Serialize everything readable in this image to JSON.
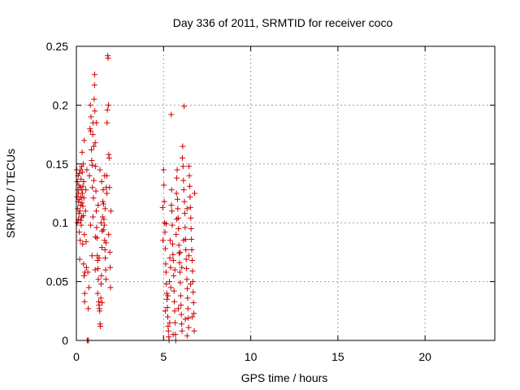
{
  "chart_data": {
    "type": "scatter",
    "title": "Day 336 of 2011, SRMTID for receiver coco",
    "xlabel": "GPS time / hours",
    "ylabel": "SRMTID / TECUs",
    "xlim": [
      0,
      24
    ],
    "ylim": [
      0,
      0.25
    ],
    "xticks": [
      0,
      5,
      10,
      15,
      20
    ],
    "xtick_labels": [
      "0",
      "5",
      "10",
      "15",
      "20"
    ],
    "yticks": [
      0,
      0.05,
      0.1,
      0.15,
      0.2,
      0.25
    ],
    "ytick_labels": [
      "0",
      "0.05",
      "0.1",
      "0.15",
      "0.2",
      "0.25"
    ],
    "grid": true,
    "legend": "none",
    "marker": "plus",
    "color": "#cc0000",
    "series": [
      {
        "points": [
          [
            0.02,
            0.145
          ],
          [
            0.04,
            0.122
          ],
          [
            0.05,
            0.1
          ],
          [
            0.06,
            0.135
          ],
          [
            0.08,
            0.112
          ],
          [
            0.09,
            0.128
          ],
          [
            0.1,
            0.14
          ],
          [
            0.11,
            0.118
          ],
          [
            0.12,
            0.103
          ],
          [
            0.13,
            0.125
          ],
          [
            0.14,
            0.132
          ],
          [
            0.15,
            0.108
          ],
          [
            0.16,
            0.142
          ],
          [
            0.17,
            0.092
          ],
          [
            0.18,
            0.12
          ],
          [
            0.19,
            0.069
          ],
          [
            0.2,
            0.11
          ],
          [
            0.21,
            0.13
          ],
          [
            0.22,
            0.085
          ],
          [
            0.23,
            0.145
          ],
          [
            0.24,
            0.115
          ],
          [
            0.25,
            0.102
          ],
          [
            0.26,
            0.122
          ],
          [
            0.27,
            0.137
          ],
          [
            0.28,
            0.098
          ],
          [
            0.29,
            0.128
          ],
          [
            0.3,
            0.148
          ],
          [
            0.31,
            0.105
          ],
          [
            0.32,
            0.117
          ],
          [
            0.33,
            0.16
          ],
          [
            0.34,
            0.143
          ],
          [
            0.35,
            0.125
          ],
          [
            0.36,
            0.082
          ],
          [
            0.37,
            0.114
          ],
          [
            0.38,
            0.131
          ],
          [
            0.39,
            0.15
          ],
          [
            0.4,
            0.106
          ],
          [
            0.41,
            0.065
          ],
          [
            0.42,
            0.135
          ],
          [
            0.43,
            0.121
          ],
          [
            0.44,
            0.055
          ],
          [
            0.45,
            0.17
          ],
          [
            0.46,
            0.09
          ],
          [
            0.47,
            0.033
          ],
          [
            0.48,
            0.04
          ],
          [
            0.5,
            0.058
          ],
          [
            0.52,
            0.11
          ],
          [
            0.54,
            0.128
          ],
          [
            0.56,
            0.084
          ],
          [
            0.58,
            0.062
          ],
          [
            0.6,
            0.145
          ],
          [
            0.62,
            0.0
          ],
          [
            0.64,
            0.0
          ],
          [
            0.66,
            0.058
          ],
          [
            0.68,
            0.027
          ],
          [
            0.7,
            0.0
          ],
          [
            0.72,
            0.045
          ],
          [
            0.75,
            0.14
          ],
          [
            0.78,
            0.18
          ],
          [
            0.8,
            0.2
          ],
          [
            0.82,
            0.178
          ],
          [
            0.84,
            0.19
          ],
          [
            0.86,
            0.162
          ],
          [
            0.88,
            0.153
          ],
          [
            0.9,
            0.149
          ],
          [
            0.92,
            0.13
          ],
          [
            0.94,
            0.175
          ],
          [
            0.96,
            0.185
          ],
          [
            0.98,
            0.121
          ],
          [
            1.0,
            0.136
          ],
          [
            1.02,
            0.205
          ],
          [
            1.04,
            0.217
          ],
          [
            1.05,
            0.226
          ],
          [
            1.06,
            0.195
          ],
          [
            1.08,
            0.168
          ],
          [
            1.1,
            0.148
          ],
          [
            1.12,
            0.127
          ],
          [
            1.14,
            0.11
          ],
          [
            1.16,
            0.096
          ],
          [
            1.18,
            0.087
          ],
          [
            1.2,
            0.072
          ],
          [
            1.22,
            0.068
          ],
          [
            1.24,
            0.061
          ],
          [
            1.26,
            0.052
          ],
          [
            1.28,
            0.033
          ],
          [
            1.3,
            0.03
          ],
          [
            1.32,
            0.027
          ],
          [
            1.34,
            0.025
          ],
          [
            1.36,
            0.014
          ],
          [
            1.38,
            0.012
          ],
          [
            1.4,
            0.036
          ],
          [
            1.42,
            0.048
          ],
          [
            1.44,
            0.055
          ],
          [
            1.46,
            0.079
          ],
          [
            1.48,
            0.093
          ],
          [
            1.5,
            0.105
          ],
          [
            1.52,
            0.118
          ],
          [
            1.54,
            0.128
          ],
          [
            1.56,
            0.116
          ],
          [
            1.58,
            0.103
          ],
          [
            1.6,
            0.098
          ],
          [
            1.62,
            0.085
          ],
          [
            1.64,
            0.077
          ],
          [
            1.66,
            0.07
          ],
          [
            1.68,
            0.06
          ],
          [
            1.7,
            0.052
          ],
          [
            1.72,
            0.13
          ],
          [
            1.74,
            0.14
          ],
          [
            1.76,
            0.185
          ],
          [
            1.78,
            0.196
          ],
          [
            1.8,
            0.242
          ],
          [
            1.82,
            0.24
          ],
          [
            1.84,
            0.2
          ],
          [
            1.86,
            0.158
          ],
          [
            1.88,
            0.155
          ],
          [
            1.9,
            0.13
          ],
          [
            1.92,
            0.075
          ],
          [
            1.94,
            0.062
          ],
          [
            1.96,
            0.045
          ],
          [
            1.98,
            0.11
          ],
          [
            0.9,
            0.072
          ],
          [
            1.1,
            0.088
          ],
          [
            1.25,
            0.115
          ],
          [
            1.35,
            0.145
          ],
          [
            1.45,
            0.135
          ],
          [
            1.55,
            0.094
          ],
          [
            1.65,
            0.112
          ],
          [
            1.75,
            0.125
          ],
          [
            1.85,
            0.09
          ],
          [
            1.0,
            0.165
          ],
          [
            1.15,
            0.185
          ],
          [
            1.3,
            0.07
          ],
          [
            1.42,
            0.1
          ],
          [
            1.62,
            0.14
          ],
          [
            1.7,
            0.083
          ],
          [
            0.82,
            0.098
          ],
          [
            0.95,
            0.105
          ],
          [
            1.08,
            0.06
          ],
          [
            1.22,
            0.04
          ],
          [
            1.48,
            0.032
          ],
          [
            4.95,
            0.113
          ],
          [
            4.97,
            0.085
          ],
          [
            5.0,
            0.145
          ],
          [
            5.02,
            0.132
          ],
          [
            5.04,
            0.118
          ],
          [
            5.06,
            0.1
          ],
          [
            5.08,
            0.092
          ],
          [
            5.1,
            0.078
          ],
          [
            5.12,
            0.065
          ],
          [
            5.14,
            0.058
          ],
          [
            5.16,
            0.048
          ],
          [
            5.18,
            0.04
          ],
          [
            5.2,
            0.035
          ],
          [
            5.22,
            0.028
          ],
          [
            5.24,
            0.02
          ],
          [
            5.26,
            0.012
          ],
          [
            5.28,
            0.008
          ],
          [
            5.3,
            0.003
          ],
          [
            5.32,
            0.0
          ],
          [
            5.34,
            0.05
          ],
          [
            5.36,
            0.07
          ],
          [
            5.38,
            0.085
          ],
          [
            5.4,
            0.062
          ],
          [
            5.42,
            0.045
          ],
          [
            5.44,
            0.192
          ],
          [
            5.46,
            0.128
          ],
          [
            5.48,
            0.11
          ],
          [
            5.5,
            0.098
          ],
          [
            5.52,
            0.082
          ],
          [
            5.54,
            0.073
          ],
          [
            5.56,
            0.068
          ],
          [
            5.58,
            0.055
          ],
          [
            5.6,
            0.042
          ],
          [
            5.62,
            0.033
          ],
          [
            5.64,
            0.025
          ],
          [
            5.66,
            0.015
          ],
          [
            5.68,
            0.005
          ],
          [
            5.7,
            0.0
          ],
          [
            5.72,
            0.09
          ],
          [
            5.74,
            0.125
          ],
          [
            5.76,
            0.138
          ],
          [
            5.78,
            0.145
          ],
          [
            5.8,
            0.12
          ],
          [
            5.82,
            0.112
          ],
          [
            5.84,
            0.104
          ],
          [
            5.86,
            0.095
          ],
          [
            5.88,
            0.081
          ],
          [
            5.9,
            0.074
          ],
          [
            5.92,
            0.066
          ],
          [
            5.94,
            0.058
          ],
          [
            5.96,
            0.049
          ],
          [
            5.98,
            0.038
          ],
          [
            6.0,
            0.03
          ],
          [
            6.02,
            0.022
          ],
          [
            6.04,
            0.014
          ],
          [
            6.06,
            0.008
          ],
          [
            6.08,
            0.155
          ],
          [
            6.1,
            0.165
          ],
          [
            6.12,
            0.148
          ],
          [
            6.14,
            0.136
          ],
          [
            6.16,
            0.128
          ],
          [
            6.18,
            0.199
          ],
          [
            6.2,
            0.118
          ],
          [
            6.22,
            0.108
          ],
          [
            6.24,
            0.096
          ],
          [
            6.26,
            0.086
          ],
          [
            6.28,
            0.077
          ],
          [
            6.3,
            0.069
          ],
          [
            6.32,
            0.061
          ],
          [
            6.34,
            0.052
          ],
          [
            6.36,
            0.044
          ],
          [
            6.38,
            0.036
          ],
          [
            6.4,
            0.027
          ],
          [
            6.42,
            0.019
          ],
          [
            6.44,
            0.011
          ],
          [
            6.46,
            0.148
          ],
          [
            6.48,
            0.14
          ],
          [
            6.5,
            0.131
          ],
          [
            6.52,
            0.122
          ],
          [
            6.54,
            0.113
          ],
          [
            6.56,
            0.104
          ],
          [
            6.58,
            0.095
          ],
          [
            6.6,
            0.086
          ],
          [
            6.62,
            0.077
          ],
          [
            6.64,
            0.068
          ],
          [
            6.66,
            0.059
          ],
          [
            6.68,
            0.05
          ],
          [
            6.7,
            0.041
          ],
          [
            6.72,
            0.032
          ],
          [
            6.74,
            0.023
          ],
          [
            6.76,
            0.008
          ],
          [
            6.78,
            0.125
          ],
          [
            5.1,
            0.025
          ],
          [
            5.25,
            0.038
          ],
          [
            5.35,
            0.015
          ],
          [
            5.55,
            0.005
          ],
          [
            5.65,
            0.06
          ],
          [
            5.75,
            0.103
          ],
          [
            5.85,
            0.027
          ],
          [
            5.95,
            0.075
          ],
          [
            6.05,
            0.062
          ],
          [
            6.15,
            0.085
          ],
          [
            6.25,
            0.018
          ],
          [
            6.35,
            0.004
          ],
          [
            6.45,
            0.072
          ],
          [
            6.55,
            0.048
          ],
          [
            6.65,
            0.02
          ],
          [
            5.15,
            0.099
          ],
          [
            5.45,
            0.115
          ],
          [
            6.35,
            0.112
          ]
        ]
      }
    ]
  }
}
